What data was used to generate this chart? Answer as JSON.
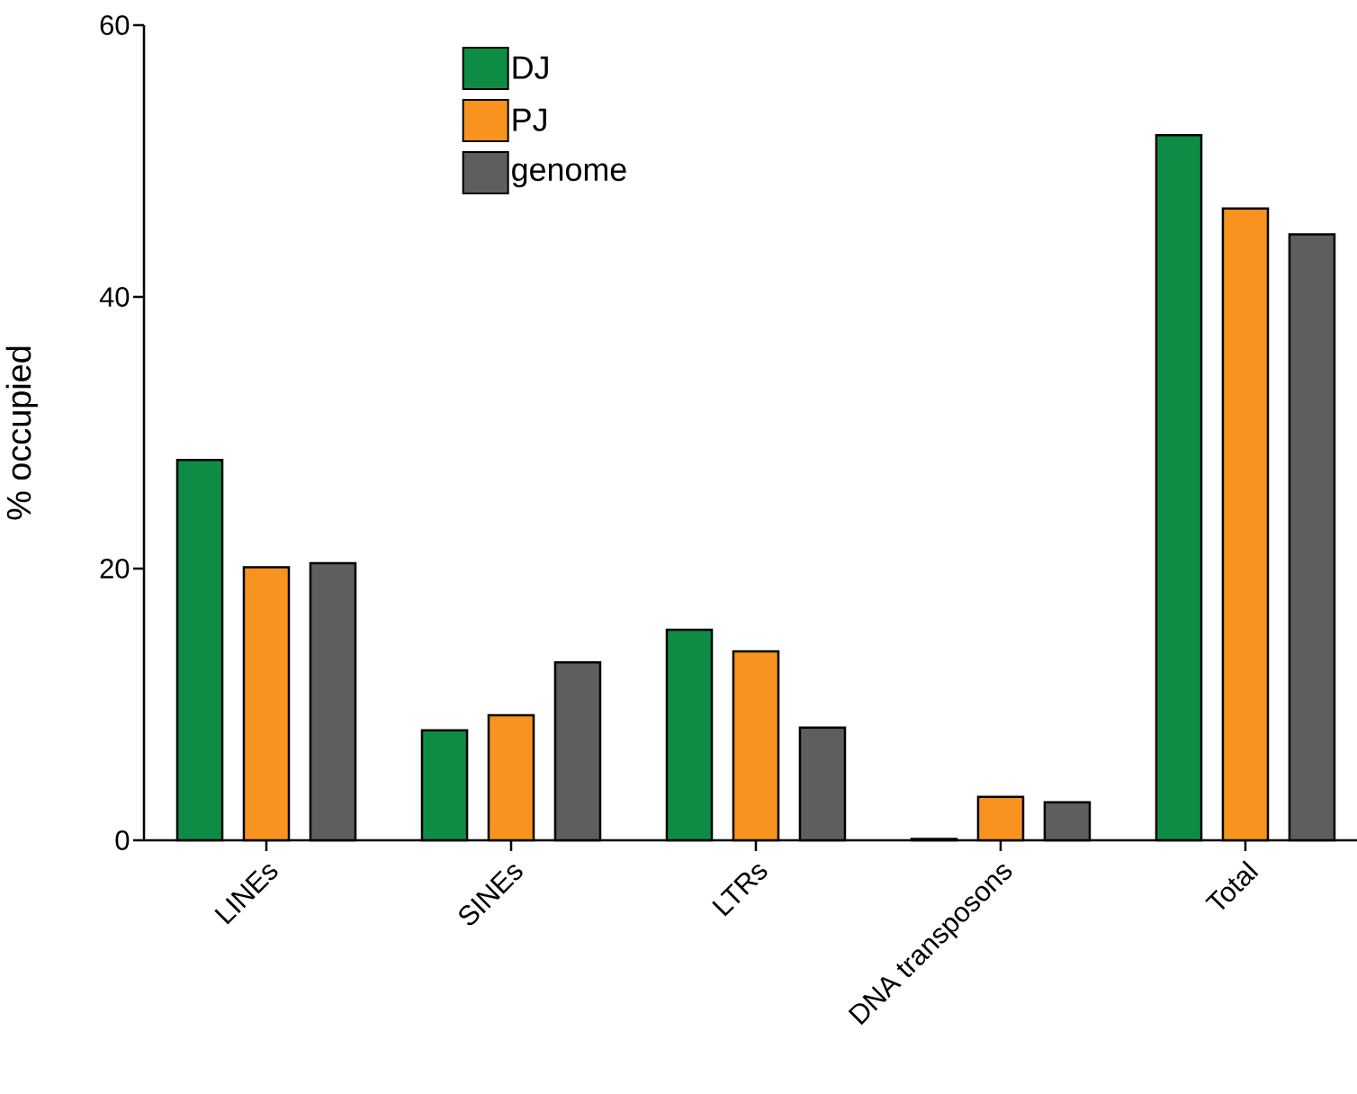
{
  "chart_data": {
    "type": "bar",
    "ylabel": "% occupied",
    "categories": [
      "LINEs",
      "SINEs",
      "LTRs",
      "DNA transposons",
      "Total"
    ],
    "series": [
      {
        "name": "DJ",
        "color": "#0e8c45",
        "values": [
          28.0,
          8.1,
          15.5,
          0.1,
          51.9
        ]
      },
      {
        "name": "PJ",
        "color": "#f7931e",
        "values": [
          20.1,
          9.2,
          13.9,
          3.2,
          46.5
        ]
      },
      {
        "name": "genome",
        "color": "#5e5e5e",
        "values": [
          20.4,
          13.1,
          8.3,
          2.8,
          44.6
        ]
      }
    ],
    "ylim": [
      0,
      60
    ],
    "yticks": [
      0,
      20,
      40,
      60
    ],
    "grid": false,
    "legend": "top"
  }
}
